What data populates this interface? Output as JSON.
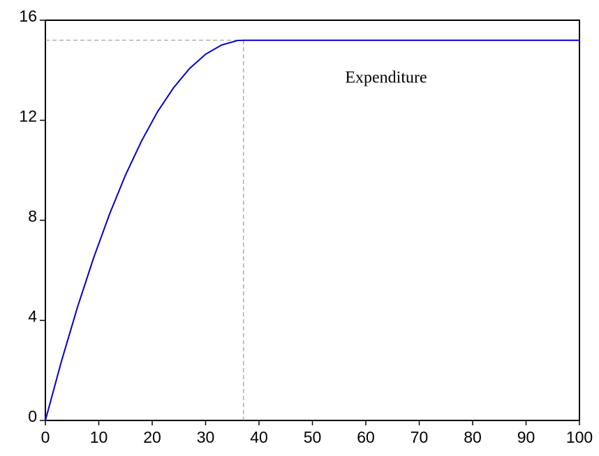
{
  "chart_data": {
    "type": "line",
    "annotation": "Expenditure",
    "x": [
      0,
      3,
      6,
      9,
      12,
      15,
      18,
      21,
      24,
      27,
      30,
      33,
      36,
      37.1,
      100
    ],
    "series": [
      {
        "color": "#0000cc",
        "values": [
          0,
          2.36,
          4.52,
          6.48,
          8.24,
          9.81,
          11.17,
          12.34,
          13.3,
          14.07,
          14.64,
          15.01,
          15.19,
          15.2,
          15.2
        ]
      }
    ],
    "reference_x": 37.1,
    "reference_y": 15.2,
    "reference_color": "#999999",
    "xlim": [
      0,
      100
    ],
    "xticks": [
      0,
      10,
      20,
      30,
      40,
      50,
      60,
      70,
      80,
      90,
      100
    ],
    "ylim": [
      0,
      16
    ],
    "yticks": [
      0,
      4,
      8,
      12,
      16
    ],
    "grid": false
  }
}
